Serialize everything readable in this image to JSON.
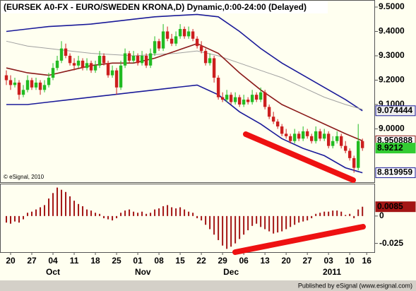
{
  "chart_data": [
    {
      "type": "candlestick",
      "title": "(EURSEK A0-FX - EURO/SWEDEN KRONA,D) Dynamic,0:00-24:00 (Delayed)",
      "watermark": "© eSignal, 2010",
      "up_color": "#22bb22",
      "down_color": "#cc1f1f",
      "open": [
        9.22,
        9.2,
        9.18,
        9.19,
        9.14,
        9.16,
        9.2,
        9.17,
        9.19,
        9.16,
        9.18,
        9.21,
        9.25,
        9.28,
        9.33,
        9.3,
        9.27,
        9.26,
        9.28,
        9.25,
        9.27,
        9.24,
        9.26,
        9.3,
        9.27,
        9.22,
        9.24,
        9.17,
        9.26,
        9.31,
        9.28,
        9.3,
        9.27,
        9.3,
        9.26,
        9.31,
        9.36,
        9.33,
        9.4,
        9.37,
        9.35,
        9.38,
        9.41,
        9.38,
        9.4,
        9.37,
        9.34,
        9.32,
        9.27,
        9.29,
        9.21,
        9.13,
        9.12,
        9.14,
        9.11,
        9.13,
        9.1,
        9.12,
        9.11,
        9.14,
        9.12,
        9.15,
        9.09,
        9.05,
        9.03,
        9.01,
        8.98,
        8.97,
        8.95,
        8.98,
        8.96,
        8.99,
        8.97,
        8.95,
        8.99,
        8.96,
        8.98,
        8.93,
        8.95,
        8.97,
        8.93,
        8.91,
        8.88,
        8.84,
        8.95
      ],
      "high": [
        9.24,
        9.22,
        9.21,
        9.2,
        9.18,
        9.22,
        9.21,
        9.21,
        9.2,
        9.2,
        9.23,
        9.27,
        9.3,
        9.36,
        9.35,
        9.31,
        9.29,
        9.3,
        9.29,
        9.29,
        9.28,
        9.28,
        9.32,
        9.31,
        9.28,
        9.26,
        9.25,
        9.28,
        9.33,
        9.32,
        9.32,
        9.31,
        9.32,
        9.31,
        9.33,
        9.38,
        9.37,
        9.43,
        9.42,
        9.39,
        9.4,
        9.43,
        9.42,
        9.42,
        9.41,
        9.38,
        9.36,
        9.33,
        9.31,
        9.3,
        9.22,
        9.15,
        9.16,
        9.15,
        9.15,
        9.14,
        9.14,
        9.13,
        9.16,
        9.15,
        9.17,
        9.16,
        9.1,
        9.07,
        9.04,
        9.02,
        9.0,
        8.98,
        9.0,
        8.99,
        9.01,
        9.0,
        8.98,
        9.01,
        9.0,
        9.0,
        8.99,
        8.97,
        8.99,
        8.98,
        8.95,
        8.92,
        8.89,
        9.02,
        8.96
      ],
      "low": [
        9.18,
        9.16,
        9.17,
        9.12,
        9.13,
        9.15,
        9.16,
        9.16,
        9.14,
        9.15,
        9.17,
        9.2,
        9.24,
        9.27,
        9.29,
        9.26,
        9.24,
        9.25,
        9.24,
        9.24,
        9.23,
        9.23,
        9.25,
        9.26,
        9.21,
        9.21,
        9.14,
        9.16,
        9.25,
        9.27,
        9.27,
        9.26,
        9.26,
        9.25,
        9.25,
        9.3,
        9.32,
        9.32,
        9.36,
        9.34,
        9.34,
        9.37,
        9.37,
        9.37,
        9.36,
        9.33,
        9.31,
        9.26,
        9.26,
        9.19,
        9.12,
        9.11,
        9.11,
        9.1,
        9.1,
        9.09,
        9.09,
        9.1,
        9.1,
        9.11,
        9.11,
        9.08,
        9.04,
        9.02,
        9.0,
        8.97,
        8.96,
        8.94,
        8.94,
        8.95,
        8.95,
        8.96,
        8.94,
        8.94,
        8.95,
        8.95,
        8.92,
        8.92,
        8.94,
        8.92,
        8.9,
        8.87,
        8.82,
        8.83,
        8.91
      ],
      "close": [
        9.2,
        9.18,
        9.19,
        9.14,
        9.16,
        9.2,
        9.17,
        9.19,
        9.16,
        9.18,
        9.21,
        9.25,
        9.28,
        9.33,
        9.3,
        9.27,
        9.26,
        9.28,
        9.25,
        9.27,
        9.24,
        9.26,
        9.3,
        9.27,
        9.22,
        9.24,
        9.17,
        9.26,
        9.31,
        9.28,
        9.3,
        9.27,
        9.3,
        9.26,
        9.31,
        9.36,
        9.33,
        9.4,
        9.37,
        9.35,
        9.38,
        9.41,
        9.38,
        9.4,
        9.37,
        9.34,
        9.32,
        9.27,
        9.29,
        9.21,
        9.13,
        9.12,
        9.14,
        9.11,
        9.13,
        9.1,
        9.12,
        9.11,
        9.14,
        9.12,
        9.15,
        9.09,
        9.05,
        9.03,
        9.01,
        8.98,
        8.97,
        8.95,
        8.98,
        8.96,
        8.99,
        8.97,
        8.95,
        8.99,
        8.96,
        8.98,
        8.93,
        8.95,
        8.97,
        8.93,
        8.91,
        8.88,
        8.84,
        8.95,
        8.9212
      ],
      "lines": [
        {
          "color": "#1a1a99",
          "x": [
            0,
            5,
            10,
            15,
            20,
            25,
            30,
            35,
            40,
            45,
            50,
            55,
            60,
            65,
            70,
            75,
            80,
            84
          ],
          "values": [
            9.4,
            9.41,
            9.42,
            9.425,
            9.43,
            9.44,
            9.45,
            9.46,
            9.465,
            9.47,
            9.46,
            9.4,
            9.33,
            9.27,
            9.22,
            9.17,
            9.12,
            9.074444
          ]
        },
        {
          "color": "#a0a0a0",
          "x": [
            0,
            5,
            10,
            15,
            20,
            25,
            30,
            35,
            40,
            45,
            50,
            55,
            60,
            65,
            70,
            75,
            80,
            84
          ],
          "values": [
            9.36,
            9.34,
            9.33,
            9.32,
            9.31,
            9.305,
            9.3,
            9.305,
            9.31,
            9.32,
            9.3,
            9.27,
            9.24,
            9.21,
            9.17,
            9.13,
            9.1,
            9.08
          ]
        },
        {
          "color": "#8b1a1a",
          "x": [
            0,
            5,
            10,
            15,
            20,
            25,
            30,
            35,
            40,
            45,
            50,
            55,
            60,
            65,
            70,
            75,
            80,
            84
          ],
          "values": [
            9.25,
            9.23,
            9.22,
            9.24,
            9.26,
            9.27,
            9.27,
            9.29,
            9.32,
            9.35,
            9.31,
            9.23,
            9.16,
            9.1,
            9.06,
            9.02,
            8.98,
            8.950888
          ]
        },
        {
          "color": "#1a1a99",
          "x": [
            0,
            5,
            10,
            15,
            20,
            25,
            30,
            35,
            40,
            45,
            50,
            55,
            60,
            65,
            70,
            75,
            80,
            84
          ],
          "values": [
            9.1,
            9.1,
            9.11,
            9.12,
            9.13,
            9.14,
            9.15,
            9.16,
            9.17,
            9.18,
            9.14,
            9.07,
            9.02,
            8.96,
            8.92,
            8.89,
            8.84,
            8.819959
          ]
        }
      ],
      "ylim": [
        8.781,
        9.529
      ],
      "yticks": [
        {
          "value": 9.5,
          "label": "9.5000"
        },
        {
          "value": 9.4,
          "label": "9.4000"
        },
        {
          "value": 9.3,
          "label": "9.3000"
        },
        {
          "value": 9.2,
          "label": "9.2000"
        },
        {
          "value": 9.1,
          "label": "9.1000"
        },
        {
          "value": 9.0,
          "label": "9.0000"
        }
      ],
      "xlim": [
        -1.5,
        86.8
      ]
    },
    {
      "type": "bar",
      "color": "#a31515",
      "values": [
        -0.006,
        -0.007,
        -0.005,
        -0.006,
        -0.003,
        0.003,
        0.004,
        0.006,
        0.008,
        0.01,
        0.016,
        0.021,
        0.026,
        0.024,
        0.022,
        0.018,
        0.014,
        0.011,
        0.009,
        0.006,
        0.005,
        0.003,
        0.002,
        -0.002,
        -0.003,
        -0.004,
        -0.002,
        0.003,
        0.005,
        0.006,
        0.004,
        0.003,
        0.004,
        0.002,
        0.003,
        0.006,
        0.007,
        0.009,
        0.01,
        0.008,
        0.007,
        0.008,
        0.006,
        0.004,
        0.003,
        -0.002,
        -0.004,
        -0.008,
        -0.012,
        -0.017,
        -0.022,
        -0.027,
        -0.03,
        -0.028,
        -0.025,
        -0.021,
        -0.017,
        -0.013,
        -0.009,
        -0.007,
        -0.01,
        -0.012,
        -0.014,
        -0.016,
        -0.015,
        -0.014,
        -0.012,
        -0.01,
        -0.008,
        -0.006,
        -0.005,
        -0.004,
        -0.002,
        0.002,
        0.003,
        0.004,
        0.004,
        0.005,
        0.005,
        0.004,
        0.001,
        0.002,
        -0.002,
        0.006,
        0.0085
      ],
      "ylim": [
        -0.033,
        0.0296
      ],
      "yticks": [
        0,
        -0.025
      ],
      "xlim": [
        -1.5,
        86.8
      ],
      "xticks": [
        {
          "value": 1,
          "label": "20"
        },
        {
          "value": 6,
          "label": "27"
        },
        {
          "value": 11,
          "label": "04"
        },
        {
          "value": 16,
          "label": "11"
        },
        {
          "value": 21,
          "label": "18"
        },
        {
          "value": 26,
          "label": "25"
        },
        {
          "value": 31,
          "label": "01"
        },
        {
          "value": 36,
          "label": "08"
        },
        {
          "value": 41,
          "label": "15"
        },
        {
          "value": 46,
          "label": "22"
        },
        {
          "value": 51,
          "label": "29"
        },
        {
          "value": 56,
          "label": "06"
        },
        {
          "value": 61,
          "label": "13"
        },
        {
          "value": 66,
          "label": "20"
        },
        {
          "value": 71,
          "label": "27"
        },
        {
          "value": 76,
          "label": "03"
        },
        {
          "value": 81,
          "label": "10"
        },
        {
          "value": 85,
          "label": "16"
        }
      ],
      "month_ticks": [
        {
          "value": 11,
          "label": "Oct"
        },
        {
          "value": 32.2,
          "label": "Nov"
        },
        {
          "value": 53,
          "label": "Dec"
        },
        {
          "value": 76.8,
          "label": "2011"
        }
      ]
    }
  ],
  "footer": "Published by eSignal (www.esignal.com)"
}
